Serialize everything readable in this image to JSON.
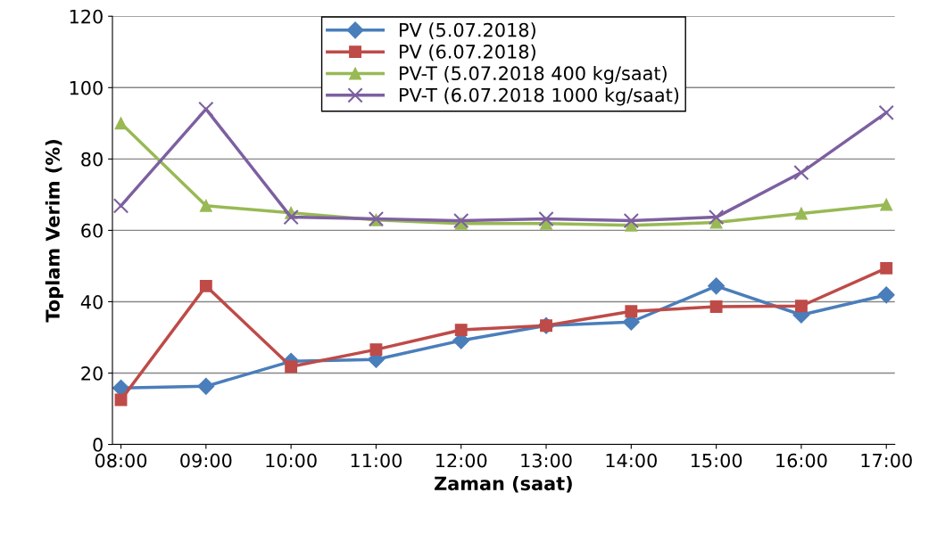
{
  "chart_data": {
    "type": "line",
    "xlabel": "Zaman (saat)",
    "ylabel": "Toplam Verim (%)",
    "categories": [
      "08:00",
      "09:00",
      "10:00",
      "11:00",
      "12:00",
      "13:00",
      "14:00",
      "15:00",
      "16:00",
      "17:00"
    ],
    "ylim": [
      0,
      120
    ],
    "yticks": [
      0,
      20,
      40,
      60,
      80,
      100,
      120
    ],
    "grid": "y",
    "legend": "top",
    "series": [
      {
        "name": "PV (5.07.2018)",
        "color": "#4a7ebb",
        "marker": "diamond",
        "values": [
          15.8,
          16.3,
          23.3,
          23.8,
          29.1,
          33.3,
          34.3,
          44.4,
          36.3,
          41.9
        ]
      },
      {
        "name": "PV (6.07.2018)",
        "color": "#be4b48",
        "marker": "square",
        "values": [
          12.5,
          44.4,
          21.8,
          26.6,
          32.1,
          33.3,
          37.3,
          38.6,
          38.8,
          49.4
        ]
      },
      {
        "name": "PV-T (5.07.2018 400 kg/saat)",
        "color": "#98b954",
        "marker": "triangle",
        "values": [
          90,
          66.9,
          64.9,
          62.9,
          61.9,
          61.9,
          61.4,
          62.2,
          64.7,
          67.2
        ]
      },
      {
        "name": "PV-T (6.07.2018 1000 kg/saat)",
        "color": "#7d60a0",
        "marker": "cross",
        "values": [
          66.9,
          94,
          63.7,
          63.2,
          62.7,
          63.2,
          62.7,
          63.7,
          76.2,
          93
        ]
      }
    ]
  }
}
